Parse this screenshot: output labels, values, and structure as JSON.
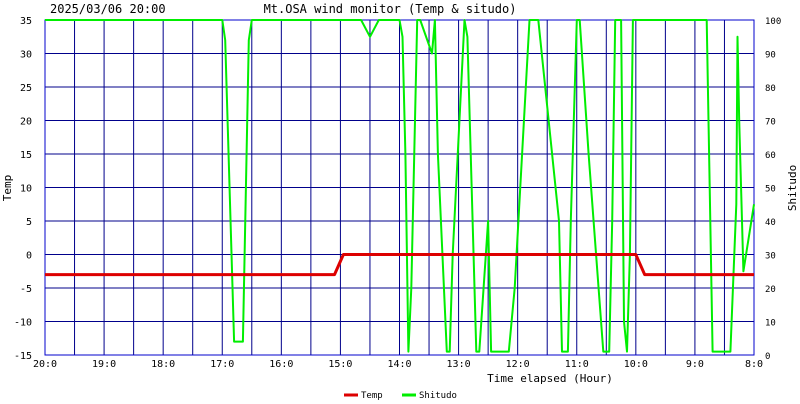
{
  "header": {
    "datetime": "2025/03/06 20:00",
    "title": "Mt.OSA wind monitor (Temp & situdo)"
  },
  "colors": {
    "background": "#ffffff",
    "grid": "#00008b",
    "plot_border": "#0000cd",
    "text": "#000000",
    "temp_line": "#dd0000",
    "shitudo_line": "#00ee00"
  },
  "chart_data": {
    "type": "line",
    "title": "Mt.OSA wind monitor (Temp & situdo)",
    "xlabel": "Time elapsed (Hour)",
    "ylabel_left": "Temp",
    "ylabel_right": "Shitudo",
    "x_tick_labels": [
      "20:0",
      "19:0",
      "18:0",
      "17:0",
      "16:0",
      "15:0",
      "14:0",
      "13:0",
      "12:0",
      "11:0",
      "10:0",
      "9:0",
      "8:0"
    ],
    "x_range": [
      0,
      12
    ],
    "ylim_left": [
      -15,
      35
    ],
    "yticks_left": [
      -15,
      -10,
      -5,
      0,
      5,
      10,
      15,
      20,
      25,
      30,
      35
    ],
    "ylim_right": [
      0,
      100
    ],
    "yticks_right": [
      0,
      10,
      20,
      30,
      40,
      50,
      60,
      70,
      80,
      90,
      100
    ],
    "grid": true,
    "legend_position": "bottom-center",
    "series": [
      {
        "name": "Temp",
        "axis": "left",
        "x": [
          0,
          4.9,
          5.05,
          10.0,
          10.15,
          12
        ],
        "y": [
          -3,
          -3,
          0,
          0,
          -3,
          -3
        ]
      },
      {
        "name": "Shitudo",
        "axis": "right",
        "x": [
          0,
          3.0,
          3.05,
          3.2,
          3.35,
          3.45,
          3.5,
          3.55,
          5.35,
          5.5,
          5.65,
          6.0,
          6.05,
          6.1,
          6.15,
          6.2,
          6.3,
          6.35,
          6.55,
          6.6,
          6.65,
          6.8,
          6.85,
          6.9,
          7.1,
          7.15,
          7.3,
          7.35,
          7.5,
          7.55,
          7.7,
          7.85,
          7.95,
          8.2,
          8.25,
          8.35,
          8.7,
          8.75,
          8.85,
          8.9,
          9.0,
          9.05,
          9.2,
          9.45,
          9.55,
          9.6,
          9.65,
          9.75,
          9.8,
          9.85,
          9.9,
          9.95,
          10.2,
          10.25,
          11.2,
          11.25,
          11.3,
          11.35,
          11.6,
          11.7,
          11.72,
          11.75,
          11.82,
          12
        ],
        "y": [
          100,
          100,
          94,
          4,
          4,
          94,
          100,
          100,
          100,
          95,
          100,
          100,
          95,
          60,
          1,
          20,
          100,
          100,
          90,
          100,
          60,
          1,
          1,
          30,
          100,
          95,
          1,
          1,
          40,
          1,
          1,
          1,
          20,
          100,
          100,
          100,
          40,
          1,
          1,
          40,
          100,
          100,
          60,
          1,
          1,
          40,
          100,
          100,
          10,
          1,
          30,
          100,
          100,
          100,
          100,
          50,
          1,
          1,
          1,
          45,
          95,
          70,
          25,
          45
        ]
      }
    ]
  }
}
